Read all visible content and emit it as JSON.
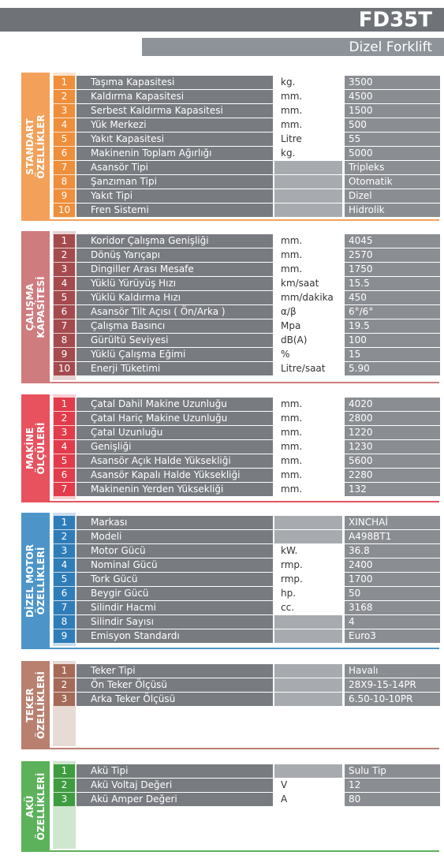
{
  "header": {
    "model": "FD35T",
    "subtitle": "Dizel Forklift"
  },
  "sections": [
    {
      "title": [
        "STANDART",
        "ÖZELLİKLER"
      ],
      "rows": [
        {
          "no": 1,
          "name": "Taşıma Kapasitesi",
          "unit": "kg.",
          "value": "3500"
        },
        {
          "no": 2,
          "name": "Kaldırma Kapasitesi",
          "unit": "mm.",
          "value": "4500"
        },
        {
          "no": 3,
          "name": "Serbest Kaldırma Kapasitesi",
          "unit": "mm.",
          "value": "1500"
        },
        {
          "no": 4,
          "name": "Yük Merkezi",
          "unit": "mm.",
          "value": "500"
        },
        {
          "no": 5,
          "name": "Yakıt Kapasitesi",
          "unit": "Litre",
          "value": "55"
        },
        {
          "no": 6,
          "name": "Makinenin Toplam Ağırlığı",
          "unit": "kg.",
          "value": "5000"
        },
        {
          "no": 7,
          "name": "Asansör Tipi",
          "value": "Tripleks"
        },
        {
          "no": 8,
          "name": "Şanzıman Tipi",
          "value": "Otomatik"
        },
        {
          "no": 9,
          "name": "Yakıt Tipi",
          "value": "Dizel"
        },
        {
          "no": 10,
          "name": "Fren Sistemi",
          "value": "Hidrolik"
        }
      ]
    },
    {
      "title": [
        "ÇALIŞMA",
        "KAPASİTESİ"
      ],
      "rows": [
        {
          "no": 1,
          "name": "Koridor Çalışma Genişliği",
          "unit": "mm.",
          "value": "4045"
        },
        {
          "no": 2,
          "name": "Dönüş Yarıçapı",
          "unit": "mm.",
          "value": "2570"
        },
        {
          "no": 3,
          "name": "Dingiller Arası Mesafe",
          "unit": "mm.",
          "value": "1750"
        },
        {
          "no": 4,
          "name": "Yüklü Yürüyüş Hızı",
          "unit": "km/saat",
          "value": "15.5"
        },
        {
          "no": 5,
          "name": "Yüklü Kaldırma Hızı",
          "unit": "mm/dakika",
          "value": "450"
        },
        {
          "no": 6,
          "name": "Asansör Tilt Açısı ( Ön/Arka )",
          "unit": "α/β",
          "value": "6°/6°"
        },
        {
          "no": 7,
          "name": "Çalışma Basıncı",
          "unit": "Mpa",
          "value": "19.5"
        },
        {
          "no": 8,
          "name": "Gürültü Seviyesi",
          "unit": "dB(A)",
          "value": "100"
        },
        {
          "no": 9,
          "name": "Yüklü Çalışma Eğimi",
          "unit": "%",
          "value": "15"
        },
        {
          "no": 10,
          "name": "Enerji Tüketimi",
          "unit": "Litre/saat",
          "value": "5.90"
        }
      ]
    },
    {
      "title": [
        "MAKİNE",
        "ÖLÇÜLERİ"
      ],
      "rows": [
        {
          "no": 1,
          "name": "Çatal Dahil Makine Uzunluğu",
          "unit": "mm.",
          "value": "4020"
        },
        {
          "no": 2,
          "name": "Çatal Hariç Makine Uzunluğu",
          "unit": "mm.",
          "value": "2800"
        },
        {
          "no": 3,
          "name": "Çatal Uzunluğu",
          "unit": "mm.",
          "value": "1220"
        },
        {
          "no": 4,
          "name": "Genişliği",
          "unit": "mm.",
          "value": "1230"
        },
        {
          "no": 5,
          "name": "Asansör Açık Halde Yüksekliği",
          "unit": "mm.",
          "value": "5600"
        },
        {
          "no": 6,
          "name": "Asansör Kapalı Halde Yüksekliği",
          "unit": "mm.",
          "value": "2280"
        },
        {
          "no": 7,
          "name": "Makinenin Yerden Yüksekliği",
          "unit": "mm.",
          "value": "132"
        }
      ]
    },
    {
      "title": [
        "DİZEL MOTOR",
        "ÖZELLİKLERİ"
      ],
      "rows": [
        {
          "no": 1,
          "name": "Markası",
          "value": "XINCHAİ"
        },
        {
          "no": 2,
          "name": "Modeli",
          "value": "A498BT1"
        },
        {
          "no": 3,
          "name": "Motor Gücü",
          "unit": "kW.",
          "value": "36.8"
        },
        {
          "no": 4,
          "name": "Nominal Gücü",
          "unit": "rmp.",
          "value": "2400"
        },
        {
          "no": 5,
          "name": "Tork Gücü",
          "unit": "rmp.",
          "value": "1700"
        },
        {
          "no": 6,
          "name": "Beygir Gücü",
          "unit": "hp.",
          "value": "50"
        },
        {
          "no": 7,
          "name": "Silindir Hacmi",
          "unit": "cc.",
          "value": "3168"
        },
        {
          "no": 8,
          "name": "Silindir Sayısı",
          "value": "4"
        },
        {
          "no": 9,
          "name": "Emisyon Standardı",
          "value": "Euro3"
        }
      ]
    },
    {
      "title": [
        "TEKER",
        "ÖZELLİKLERİ"
      ],
      "rows": [
        {
          "no": 1,
          "name": "Teker Tipi",
          "value": "Havalı"
        },
        {
          "no": 2,
          "name": "Ön Teker Ölçüsü",
          "value": "28X9-15-14PR"
        },
        {
          "no": 3,
          "name": "Arka Teker Ölçüsü",
          "value": "6.50-10-10PR"
        }
      ]
    },
    {
      "title": [
        "AKÜ",
        "ÖZELLİKLERİ"
      ],
      "rows": [
        {
          "no": 1,
          "name": "Akü Tipi",
          "value": "Sulu Tip"
        },
        {
          "no": 2,
          "name": "Akü Voltaj Değeri",
          "unit": "V",
          "value": "12"
        },
        {
          "no": 3,
          "name": "Akü Amper Değeri",
          "unit": "A",
          "value": "80"
        }
      ]
    }
  ]
}
